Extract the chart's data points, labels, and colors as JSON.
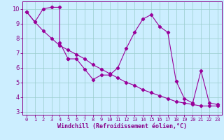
{
  "line1_x": [
    0,
    1,
    2,
    3,
    4,
    4,
    5,
    5,
    6,
    7,
    8,
    9,
    10,
    11,
    12,
    13,
    14,
    15,
    16,
    17,
    18,
    19,
    20,
    21,
    22,
    23
  ],
  "line1_y": [
    9.8,
    9.1,
    10.0,
    10.1,
    10.1,
    7.7,
    6.6,
    6.6,
    6.6,
    5.9,
    5.2,
    5.5,
    5.5,
    6.0,
    7.3,
    8.4,
    9.3,
    9.6,
    8.8,
    8.4,
    5.1,
    3.9,
    3.6,
    5.8,
    3.6,
    3.5
  ],
  "line2_x": [
    0,
    1,
    2,
    3,
    4,
    5,
    6,
    7,
    8,
    9,
    10,
    11,
    12,
    13,
    14,
    15,
    16,
    17,
    18,
    19,
    20,
    21,
    22,
    23
  ],
  "line2_y": [
    9.8,
    9.1,
    8.5,
    8.0,
    7.5,
    7.2,
    6.9,
    6.6,
    6.2,
    5.9,
    5.6,
    5.3,
    5.0,
    4.8,
    4.5,
    4.3,
    4.1,
    3.9,
    3.7,
    3.6,
    3.5,
    3.4,
    3.4,
    3.4
  ],
  "line_color": "#990099",
  "bg_color": "#cceeff",
  "grid_color": "#99cccc",
  "xlabel": "Windchill (Refroidissement éolien,°C)",
  "xlim": [
    -0.5,
    23.5
  ],
  "ylim": [
    2.8,
    10.5
  ],
  "yticks": [
    3,
    4,
    5,
    6,
    7,
    8,
    9,
    10
  ],
  "xticks": [
    0,
    1,
    2,
    3,
    4,
    5,
    6,
    7,
    8,
    9,
    10,
    11,
    12,
    13,
    14,
    15,
    16,
    17,
    18,
    19,
    20,
    21,
    22,
    23
  ],
  "tick_color": "#880088",
  "label_fontsize": 5.0,
  "xlabel_fontsize": 6.0,
  "ytick_fontsize": 6.0,
  "linewidth": 0.8,
  "markersize": 2.2
}
